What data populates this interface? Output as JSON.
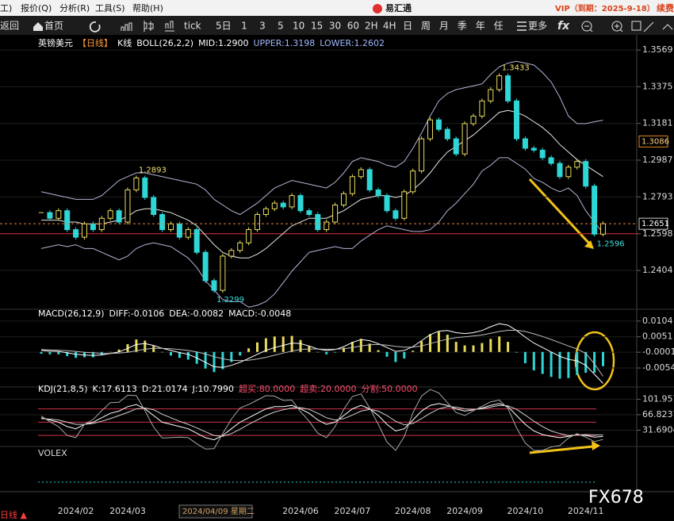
{
  "menu": {
    "items": [
      "工)",
      "报价(Q)",
      "分析(R)",
      "工具(S)",
      "帮助(H)"
    ],
    "app": "易汇通",
    "vip": "VIP（到期：2025-9-18）",
    "renew": "续费"
  },
  "toolbar": {
    "back": "返回",
    "home": "首页",
    "periods": [
      "tick",
      "5日",
      "1",
      "3",
      "5",
      "10",
      "15",
      "30",
      "60",
      "2H",
      "4H",
      "日",
      "周",
      "月",
      "季",
      "年",
      "任"
    ],
    "more": "更多",
    "formula": "fx"
  },
  "chart_data": [
    {
      "type": "candlestick",
      "legend": [
        {
          "text": "英镑美元",
          "color": "#ffffff"
        },
        {
          "text": "【日线】",
          "color": "#ff9a3c"
        },
        {
          "text": "K线",
          "color": "#ffffff"
        },
        {
          "text": "BOLL(26,2,2)",
          "color": "#ffffff"
        },
        {
          "text": "MID:1.2900",
          "color": "#ffffff"
        },
        {
          "text": "UPPER:1.3198",
          "color": "#9fb8ff"
        },
        {
          "text": "LOWER:1.2602",
          "color": "#9fb8ff"
        }
      ],
      "categories": [
        null,
        null,
        null,
        null,
        "2024/02",
        null,
        null,
        null,
        null,
        null,
        "2024/03",
        null,
        null,
        null,
        null,
        null,
        null,
        null,
        null,
        null,
        null,
        null,
        null,
        null,
        null,
        null,
        null,
        null,
        null,
        null,
        "2024/06",
        null,
        null,
        null,
        null,
        null,
        "2024/07",
        null,
        null,
        null,
        null,
        null,
        null,
        "2024/08",
        null,
        null,
        null,
        null,
        null,
        "2024/09",
        null,
        null,
        null,
        null,
        null,
        null,
        "2024/10",
        null,
        null,
        null,
        null,
        null,
        null,
        "2024/11",
        null,
        null
      ],
      "values": [
        1.271,
        1.268,
        1.272,
        1.262,
        1.258,
        1.265,
        1.262,
        1.268,
        1.272,
        1.266,
        1.283,
        1.2893,
        1.279,
        1.27,
        1.262,
        1.265,
        1.258,
        1.262,
        1.25,
        1.235,
        1.2299,
        1.248,
        1.251,
        1.255,
        1.262,
        1.27,
        1.273,
        1.276,
        1.274,
        1.28,
        1.272,
        1.27,
        1.262,
        1.266,
        1.275,
        1.281,
        1.29,
        1.2937,
        1.283,
        1.28,
        1.272,
        1.268,
        1.282,
        1.293,
        1.31,
        1.32,
        1.315,
        1.31,
        1.302,
        1.318,
        1.322,
        1.33,
        1.336,
        1.3433,
        1.33,
        1.31,
        1.305,
        1.304,
        1.3,
        1.297,
        1.29,
        1.295,
        1.298,
        1.285,
        1.2596,
        1.2651
      ],
      "value_labels": [
        null,
        null,
        null,
        null,
        null,
        null,
        null,
        null,
        null,
        null,
        null,
        "1.2893",
        null,
        null,
        null,
        null,
        null,
        null,
        null,
        null,
        "1.2299",
        null,
        null,
        null,
        null,
        null,
        null,
        null,
        null,
        null,
        null,
        null,
        null,
        null,
        null,
        null,
        null,
        null,
        null,
        null,
        null,
        null,
        null,
        null,
        null,
        null,
        null,
        null,
        null,
        null,
        null,
        null,
        null,
        "1.3433",
        null,
        null,
        null,
        null,
        null,
        null,
        null,
        null,
        null,
        null,
        "1.2596",
        null
      ],
      "color_up": "#e8dc5a",
      "color_down": "#2fd6d6",
      "series": [
        {
          "color": "#b4b4d8",
          "values": [
            1.282,
            1.281,
            1.28,
            1.279,
            1.278,
            1.278,
            1.278,
            1.28,
            1.284,
            1.288,
            1.29,
            1.292,
            1.292,
            1.291,
            1.29,
            1.289,
            1.288,
            1.287,
            1.286,
            1.283,
            1.278,
            1.275,
            1.272,
            1.27,
            1.273,
            1.276,
            1.28,
            1.284,
            1.286,
            1.288,
            1.287,
            1.286,
            1.285,
            1.284,
            1.287,
            1.292,
            1.298,
            1.3,
            1.299,
            1.298,
            1.296,
            1.295,
            1.298,
            1.305,
            1.313,
            1.322,
            1.33,
            1.334,
            1.336,
            1.337,
            1.338,
            1.339,
            1.344,
            1.348,
            1.35,
            1.351,
            1.35,
            1.349,
            1.345,
            1.34,
            1.332,
            1.322,
            1.318,
            1.318,
            1.319,
            1.3198
          ]
        },
        {
          "color": "#e8e8e8",
          "values": [
            1.267,
            1.267,
            1.267,
            1.266,
            1.266,
            1.265,
            1.265,
            1.265,
            1.266,
            1.267,
            1.269,
            1.272,
            1.273,
            1.273,
            1.272,
            1.271,
            1.269,
            1.267,
            1.264,
            1.259,
            1.254,
            1.25,
            1.248,
            1.247,
            1.247,
            1.249,
            1.252,
            1.256,
            1.26,
            1.264,
            1.266,
            1.268,
            1.268,
            1.268,
            1.27,
            1.272,
            1.275,
            1.278,
            1.279,
            1.28,
            1.28,
            1.279,
            1.28,
            1.283,
            1.287,
            1.292,
            1.298,
            1.303,
            1.306,
            1.309,
            1.312,
            1.316,
            1.32,
            1.324,
            1.325,
            1.324,
            1.322,
            1.319,
            1.316,
            1.312,
            1.307,
            1.303,
            1.299,
            1.296,
            1.293,
            1.29
          ]
        },
        {
          "color": "#b4b4d8",
          "values": [
            1.252,
            1.253,
            1.254,
            1.253,
            1.254,
            1.252,
            1.252,
            1.25,
            1.248,
            1.246,
            1.248,
            1.252,
            1.254,
            1.255,
            1.254,
            1.253,
            1.25,
            1.247,
            1.242,
            1.235,
            1.23,
            1.225,
            1.224,
            1.224,
            1.221,
            1.222,
            1.224,
            1.228,
            1.234,
            1.24,
            1.245,
            1.25,
            1.251,
            1.252,
            1.253,
            1.252,
            1.252,
            1.256,
            1.259,
            1.262,
            1.264,
            1.263,
            1.262,
            1.261,
            1.261,
            1.262,
            1.266,
            1.272,
            1.276,
            1.281,
            1.286,
            1.293,
            1.296,
            1.3,
            1.3,
            1.297,
            1.294,
            1.289,
            1.287,
            1.284,
            1.282,
            1.284,
            1.28,
            1.272,
            1.266,
            1.2602
          ]
        }
      ],
      "ylim": [
        1.222,
        1.3603
      ],
      "yticks": [
        1.3569,
        1.3375,
        1.3181,
        1.2987,
        1.2793,
        1.2598,
        1.2404
      ],
      "hline": 1.2598,
      "hline_color": "#e02828",
      "price_markers": [
        1.3086,
        1.2651
      ]
    },
    {
      "type": "bar",
      "legend": [
        {
          "text": "MACD(26,12,9)",
          "color": "#ffffff"
        },
        {
          "text": "DIFF:-0.0106",
          "color": "#ffffff"
        },
        {
          "text": "DEA:-0.0082",
          "color": "#ffffff"
        },
        {
          "text": "MACD:-0.0048",
          "color": "#ffffff"
        }
      ],
      "values": [
        -0.0006,
        -0.0008,
        -0.0008,
        -0.0014,
        -0.002,
        -0.0018,
        -0.0018,
        -0.001,
        0,
        0.0008,
        0.0026,
        0.0042,
        0.0038,
        0.002,
        0,
        -0.0012,
        -0.002,
        -0.0026,
        -0.004,
        -0.0056,
        -0.0068,
        -0.0058,
        -0.0034,
        -0.0012,
        0.0012,
        0.0032,
        0.0046,
        0.0052,
        0.0052,
        0.0054,
        0.004,
        0.002,
        0,
        -0.0008,
        -0.0002,
        0.0014,
        0.0034,
        0.0044,
        0.0028,
        0.0006,
        -0.0016,
        -0.0034,
        -0.0022,
        0.0004,
        0.0036,
        0.006,
        0.0068,
        0.0058,
        0.0034,
        0.0022,
        0.0022,
        0.003,
        0.0044,
        0.0052,
        0.0034,
        -0.0002,
        -0.0038,
        -0.0062,
        -0.0074,
        -0.0084,
        -0.009,
        -0.0088,
        -0.0078,
        -0.007,
        -0.007,
        -0.0048
      ],
      "color_up": "#e8dc5a",
      "color_down": "#2fd6d6",
      "series": [
        {
          "color": "#ffffff",
          "values": [
            0.0005,
            0.0003,
            0.0002,
            -0.0003,
            -0.0008,
            -0.001,
            -0.0012,
            -0.001,
            -0.0005,
            0,
            0.0012,
            0.0025,
            0.0028,
            0.0022,
            0.0012,
            0.0005,
            -0.0002,
            -0.0008,
            -0.002,
            -0.0035,
            -0.005,
            -0.0052,
            -0.0045,
            -0.0035,
            -0.0022,
            -0.0008,
            0.0005,
            0.0015,
            0.0022,
            0.003,
            0.0028,
            0.002,
            0.001,
            0.0005,
            0.0008,
            0.0018,
            0.0032,
            0.0042,
            0.0038,
            0.0028,
            0.0015,
            0.0002,
            0.0005,
            0.0018,
            0.0038,
            0.0058,
            0.007,
            0.0072,
            0.0065,
            0.0062,
            0.0065,
            0.0072,
            0.0085,
            0.0095,
            0.009,
            0.0072,
            0.005,
            0.003,
            0.0015,
            0,
            -0.0015,
            -0.0025,
            -0.003,
            -0.0045,
            -0.0075,
            -0.0106
          ]
        },
        {
          "color": "#bdbdbd",
          "values": [
            0.0008,
            0.0007,
            0.0006,
            0.0004,
            0.0002,
            -0.0001,
            -0.0003,
            -0.0005,
            -0.0005,
            -0.0004,
            -0.0001,
            0.0004,
            0.0009,
            0.0012,
            0.0012,
            0.0011,
            0.0008,
            0.0005,
            0,
            -0.0007,
            -0.0016,
            -0.0023,
            -0.0028,
            -0.0029,
            -0.0028,
            -0.0024,
            -0.0018,
            -0.0011,
            -0.0004,
            0.0003,
            0.0008,
            0.001,
            0.001,
            0.0009,
            0.0009,
            0.0011,
            0.0015,
            0.002,
            0.0024,
            0.0025,
            0.0023,
            0.0019,
            0.0016,
            0.0016,
            0.002,
            0.0028,
            0.0036,
            0.0043,
            0.0048,
            0.0051,
            0.0054,
            0.0057,
            0.0063,
            0.0069,
            0.0073,
            0.0073,
            0.0069,
            0.0061,
            0.0052,
            0.0042,
            0.0031,
            0.002,
            0.001,
            -0.0005,
            -0.004,
            -0.0082
          ]
        }
      ],
      "ylim": [
        -0.0118,
        0.0125
      ],
      "yticks": [
        0.0104,
        0.0051,
        -0.0001,
        -0.0054
      ]
    },
    {
      "type": "line",
      "legend": [
        {
          "text": "KDJ(21,8,5)",
          "color": "#ffffff"
        },
        {
          "text": "K:17.6113",
          "color": "#ffffff"
        },
        {
          "text": "D:21.0174",
          "color": "#ffffff"
        },
        {
          "text": "J:10.7990",
          "color": "#ffffff"
        },
        {
          "text": "超买:80.0000",
          "color": "#ff4d6d"
        },
        {
          "text": "超卖:20.0000",
          "color": "#ff4d6d"
        },
        {
          "text": "分割:50.0000",
          "color": "#ff4d6d"
        }
      ],
      "series": [
        {
          "color": "#ffffff",
          "values": [
            60,
            55,
            50,
            40,
            35,
            45,
            50,
            60,
            70,
            75,
            85,
            90,
            80,
            65,
            50,
            45,
            40,
            35,
            25,
            15,
            10,
            20,
            35,
            50,
            60,
            70,
            80,
            85,
            85,
            88,
            80,
            70,
            55,
            45,
            50,
            65,
            80,
            88,
            80,
            65,
            45,
            30,
            35,
            55,
            75,
            88,
            92,
            88,
            80,
            75,
            78,
            82,
            88,
            92,
            85,
            65,
            45,
            30,
            22,
            18,
            15,
            18,
            22,
            20,
            16,
            17.6113
          ]
        },
        {
          "color": "#d0d0d0",
          "values": [
            58,
            57,
            55,
            50,
            45,
            45,
            47,
            52,
            58,
            65,
            72,
            80,
            82,
            78,
            68,
            60,
            52,
            45,
            37,
            28,
            20,
            18,
            24,
            34,
            45,
            55,
            65,
            73,
            78,
            82,
            83,
            79,
            70,
            60,
            55,
            58,
            66,
            75,
            79,
            75,
            65,
            52,
            44,
            47,
            58,
            70,
            80,
            85,
            84,
            80,
            79,
            80,
            84,
            88,
            87,
            79,
            66,
            52,
            40,
            30,
            24,
            20,
            21,
            22,
            21,
            21.0174
          ]
        },
        {
          "color": "#a8a8a8",
          "values": [
            64,
            51,
            40,
            20,
            15,
            45,
            56,
            76,
            94,
            95,
            111,
            110,
            76,
            39,
            14,
            15,
            16,
            15,
            1,
            -11,
            -10,
            24,
            57,
            82,
            90,
            100,
            110,
            109,
            99,
            100,
            74,
            52,
            25,
            15,
            40,
            79,
            108,
            114,
            82,
            45,
            5,
            -14,
            17,
            71,
            109,
            124,
            116,
            94,
            72,
            65,
            76,
            86,
            96,
            100,
            81,
            37,
            3,
            -14,
            -14,
            -6,
            -3,
            14,
            24,
            16,
            6,
            10.799
          ]
        }
      ],
      "levels": [
        80,
        50,
        20
      ],
      "level_color": "#d03048",
      "ylim": [
        -5,
        126
      ],
      "yticks": [
        {
          "value": 101.957,
          "label": "101.9570"
        },
        66.8237,
        31.6904
      ]
    }
  ],
  "volume": {
    "label": "VOLEX"
  },
  "crosshair_date": "2024/04/09 星期二",
  "bottom_tab": "日线 ▲",
  "watermark": "FX678"
}
